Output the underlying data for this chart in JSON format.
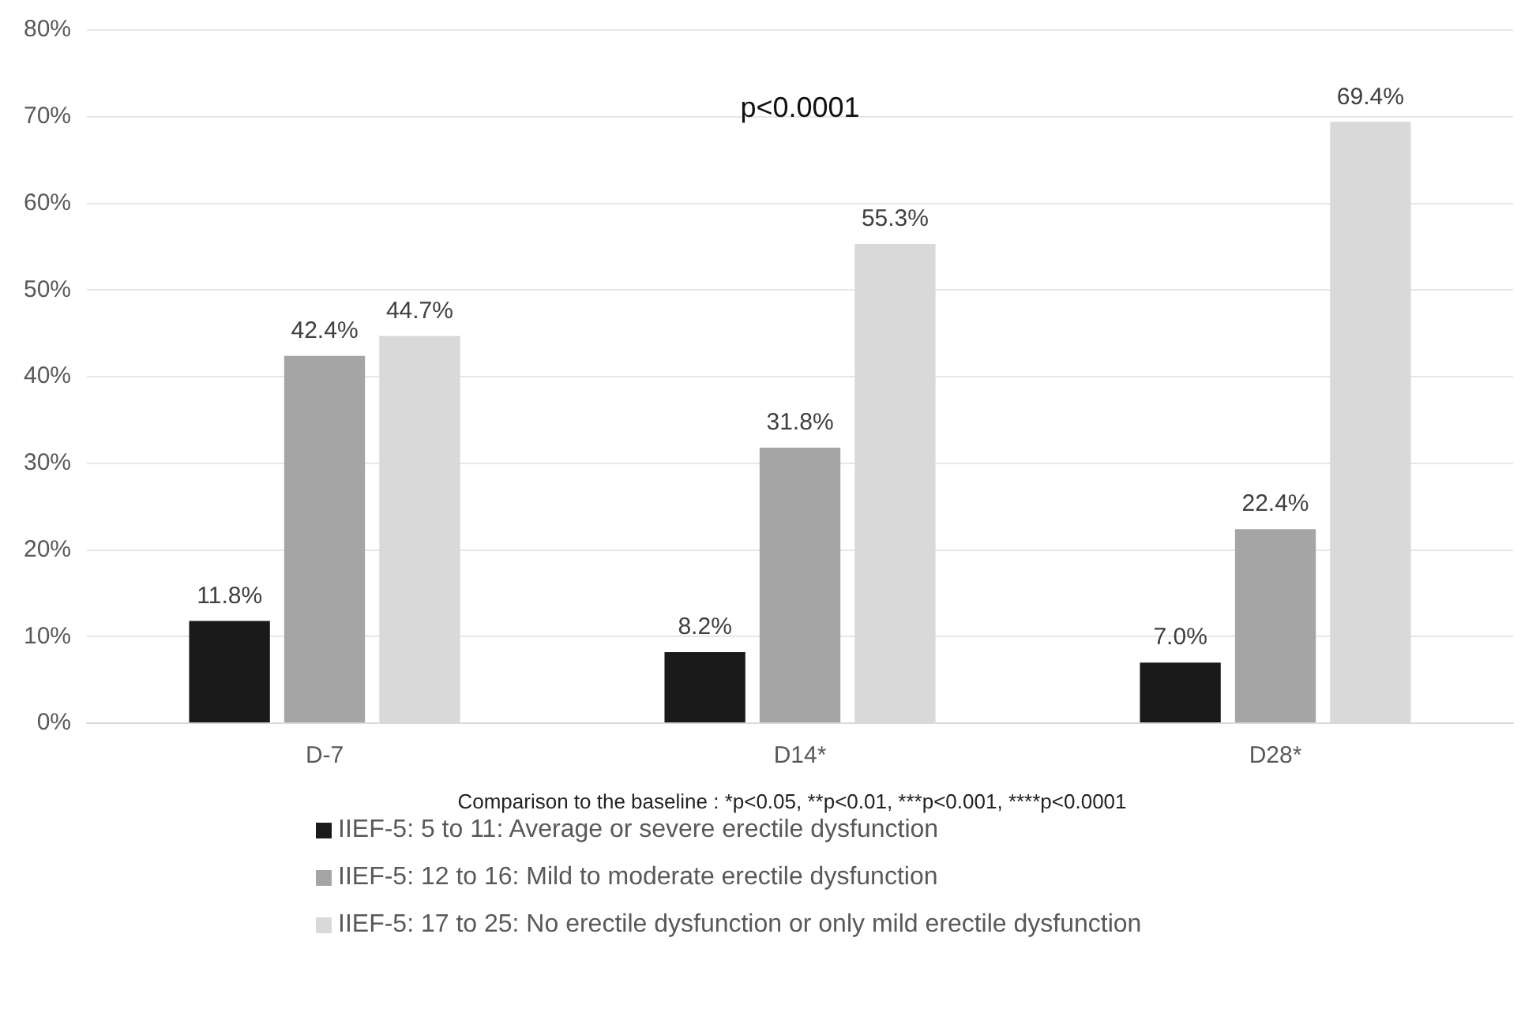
{
  "chart_data": {
    "type": "bar",
    "categories": [
      "D-7",
      "D14*",
      "D28*"
    ],
    "series": [
      {
        "name": "IIEF-5: 5 to 11: Average or severe erectile dysfunction",
        "color": "#1a1a1a",
        "values": [
          11.8,
          8.2,
          7.0
        ],
        "value_labels": [
          "11.8%",
          "8.2%",
          "7.0%"
        ]
      },
      {
        "name": "IIEF-5: 12 to 16: Mild to moderate erectile dysfunction",
        "color": "#a5a5a5",
        "values": [
          42.4,
          31.8,
          22.4
        ],
        "value_labels": [
          "42.4%",
          "31.8%",
          "22.4%"
        ]
      },
      {
        "name": "IIEF-5: 17 to 25: No erectile dysfunction or only mild erectile dysfunction",
        "color": "#d9d9d9",
        "values": [
          44.7,
          55.3,
          69.4
        ],
        "value_labels": [
          "44.7%",
          "55.3%",
          "69.4%"
        ]
      }
    ],
    "ylim": [
      0,
      80
    ],
    "yticks": [
      {
        "value": 0,
        "label": "0%"
      },
      {
        "value": 10,
        "label": "10%"
      },
      {
        "value": 20,
        "label": "20%"
      },
      {
        "value": 30,
        "label": "30%"
      },
      {
        "value": 40,
        "label": "40%"
      },
      {
        "value": 50,
        "label": "50%"
      },
      {
        "value": 60,
        "label": "60%"
      },
      {
        "value": 70,
        "label": "70%"
      },
      {
        "value": 80,
        "label": "80%"
      }
    ],
    "grid": "y",
    "legend": "bottom",
    "annotations": [
      "p<0.0001",
      "Comparison to the baseline : *p<0.05, **p<0.01, ***p<0.001, ****p<0.0001"
    ]
  }
}
